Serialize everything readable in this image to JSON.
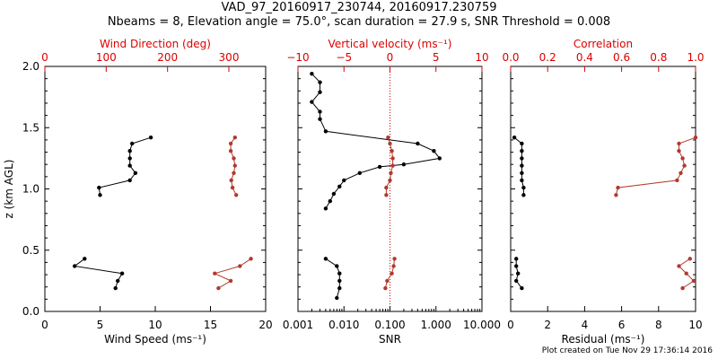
{
  "header": {
    "title": "VAD_97_20160917_230744, 20160917.230759",
    "subtitle": "Nbeams = 8, Elevation angle = 75.0°, scan duration = 27.9 s, SNR Threshold = 0.008"
  },
  "footer": "Plot created on Tue Nov 29 17:36:14 2016",
  "colors": {
    "primary": "#000000",
    "secondary": "#b03a2e",
    "top_axis": "#dd0000"
  },
  "chart_data": [
    {
      "type": "line",
      "ylabel": "z (km AGL)",
      "ylim": [
        0,
        2
      ],
      "yticks": [
        "0.0",
        "0.5",
        "1.0",
        "1.5",
        "2.0"
      ],
      "bottom_axis": {
        "label": "Wind Speed (ms⁻¹)",
        "lim": [
          0,
          20
        ],
        "ticks": [
          "0",
          "5",
          "10",
          "15",
          "20"
        ],
        "scale": "linear"
      },
      "top_axis": {
        "label": "Wind Direction (deg)",
        "lim": [
          0,
          360
        ],
        "ticks": [
          "0",
          "100",
          "200",
          "300"
        ],
        "tick_values": [
          0,
          100,
          200,
          300
        ],
        "scale": "linear"
      },
      "series": [
        {
          "axis": "bottom",
          "color": "black",
          "segments": [
            [
              [
                6.4,
                0.19
              ],
              [
                6.6,
                0.25
              ],
              [
                7.0,
                0.31
              ],
              [
                2.7,
                0.37
              ],
              [
                3.6,
                0.43
              ]
            ],
            [
              [
                5.0,
                0.95
              ],
              [
                4.9,
                1.01
              ],
              [
                7.7,
                1.07
              ],
              [
                8.2,
                1.13
              ],
              [
                7.7,
                1.19
              ],
              [
                7.7,
                1.25
              ],
              [
                7.7,
                1.31
              ],
              [
                7.9,
                1.37
              ],
              [
                9.6,
                1.42
              ]
            ]
          ]
        },
        {
          "axis": "top",
          "color": "red",
          "segments": [
            [
              [
                283,
                0.19
              ],
              [
                303,
                0.25
              ],
              [
                277,
                0.31
              ],
              [
                318,
                0.37
              ],
              [
                336,
                0.43
              ]
            ],
            [
              [
                312,
                0.95
              ],
              [
                306,
                1.01
              ],
              [
                304,
                1.07
              ],
              [
                308,
                1.13
              ],
              [
                310,
                1.19
              ],
              [
                308,
                1.25
              ],
              [
                303,
                1.31
              ],
              [
                303,
                1.37
              ],
              [
                310,
                1.42
              ]
            ]
          ]
        }
      ]
    },
    {
      "type": "line",
      "ylim": [
        0,
        2
      ],
      "bottom_axis": {
        "label": "SNR",
        "lim": [
          0.001,
          10
        ],
        "ticks": [
          "0.001",
          "0.010",
          "0.100",
          "1.000",
          "10.000"
        ],
        "tick_values": [
          0.001,
          0.01,
          0.1,
          1,
          10
        ],
        "scale": "log"
      },
      "top_axis": {
        "label": "Vertical velocity (ms⁻¹)",
        "lim": [
          -10,
          10
        ],
        "ticks": [
          "−10",
          "−5",
          "0",
          "5",
          "10"
        ],
        "scale": "linear",
        "reference_line": 0
      },
      "series": [
        {
          "axis": "bottom",
          "color": "black",
          "segments": [
            [
              [
                0.007,
                0.11
              ],
              [
                0.008,
                0.19
              ],
              [
                0.008,
                0.25
              ],
              [
                0.008,
                0.31
              ],
              [
                0.007,
                0.37
              ],
              [
                0.004,
                0.43
              ]
            ],
            [
              [
                0.004,
                0.84
              ],
              [
                0.005,
                0.9
              ],
              [
                0.006,
                0.96
              ],
              [
                0.008,
                1.02
              ],
              [
                0.01,
                1.07
              ],
              [
                0.022,
                1.13
              ],
              [
                0.06,
                1.18
              ],
              [
                0.2,
                1.2
              ],
              [
                1.2,
                1.25
              ],
              [
                0.9,
                1.31
              ],
              [
                0.4,
                1.37
              ],
              [
                0.004,
                1.47
              ],
              [
                0.003,
                1.57
              ],
              [
                0.003,
                1.63
              ],
              [
                0.002,
                1.71
              ],
              [
                0.003,
                1.79
              ],
              [
                0.003,
                1.87
              ],
              [
                0.002,
                1.94
              ]
            ]
          ]
        },
        {
          "axis": "top",
          "color": "red",
          "segments": [
            [
              [
                -0.5,
                0.19
              ],
              [
                -0.3,
                0.25
              ],
              [
                0.2,
                0.31
              ],
              [
                0.4,
                0.37
              ],
              [
                0.5,
                0.43
              ]
            ],
            [
              [
                -0.4,
                0.95
              ],
              [
                -0.4,
                1.01
              ],
              [
                0,
                1.07
              ],
              [
                0.1,
                1.13
              ],
              [
                0.3,
                1.19
              ],
              [
                0.3,
                1.25
              ],
              [
                0.2,
                1.31
              ],
              [
                0.0,
                1.37
              ],
              [
                -0.2,
                1.42
              ]
            ]
          ]
        }
      ]
    },
    {
      "type": "line",
      "ylim": [
        0,
        2
      ],
      "bottom_axis": {
        "label": "Residual (ms⁻¹)",
        "lim": [
          0,
          10
        ],
        "ticks": [
          "0",
          "2",
          "4",
          "6",
          "8",
          "10"
        ],
        "scale": "linear"
      },
      "top_axis": {
        "label": "Correlation",
        "lim": [
          0,
          1
        ],
        "ticks": [
          "0.0",
          "0.2",
          "0.4",
          "0.6",
          "0.8",
          "1.0"
        ],
        "tick_values": [
          0,
          0.2,
          0.4,
          0.6,
          0.8,
          1.0
        ],
        "scale": "linear"
      },
      "series": [
        {
          "axis": "bottom",
          "color": "black",
          "segments": [
            [
              [
                0.6,
                0.19
              ],
              [
                0.3,
                0.25
              ],
              [
                0.4,
                0.31
              ],
              [
                0.3,
                0.37
              ],
              [
                0.3,
                0.43
              ]
            ],
            [
              [
                0.7,
                0.95
              ],
              [
                0.7,
                1.01
              ],
              [
                0.6,
                1.07
              ],
              [
                0.6,
                1.13
              ],
              [
                0.6,
                1.19
              ],
              [
                0.6,
                1.25
              ],
              [
                0.6,
                1.31
              ],
              [
                0.6,
                1.37
              ],
              [
                0.2,
                1.42
              ]
            ]
          ]
        },
        {
          "axis": "top",
          "color": "red",
          "segments": [
            [
              [
                0.93,
                0.19
              ],
              [
                0.99,
                0.25
              ],
              [
                0.95,
                0.31
              ],
              [
                0.91,
                0.37
              ],
              [
                0.97,
                0.43
              ]
            ],
            [
              [
                0.57,
                0.95
              ],
              [
                0.58,
                1.01
              ],
              [
                0.9,
                1.07
              ],
              [
                0.92,
                1.13
              ],
              [
                0.94,
                1.19
              ],
              [
                0.93,
                1.25
              ],
              [
                0.91,
                1.31
              ],
              [
                0.91,
                1.37
              ],
              [
                1.0,
                1.42
              ]
            ]
          ]
        }
      ]
    }
  ]
}
